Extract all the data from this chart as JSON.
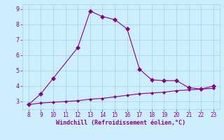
{
  "x_upper": [
    8,
    9,
    10,
    12,
    13,
    14,
    15,
    16,
    17,
    18,
    19,
    20,
    21,
    22,
    23
  ],
  "y_upper": [
    2.8,
    3.5,
    4.5,
    6.5,
    8.85,
    8.5,
    8.3,
    7.7,
    5.1,
    4.4,
    4.35,
    4.35,
    3.9,
    3.8,
    4.0
  ],
  "x_lower": [
    8,
    9,
    10,
    11,
    12,
    13,
    14,
    15,
    16,
    17,
    18,
    19,
    20,
    21,
    22,
    23
  ],
  "y_lower": [
    2.8,
    2.9,
    2.95,
    3.0,
    3.05,
    3.15,
    3.2,
    3.3,
    3.4,
    3.5,
    3.55,
    3.6,
    3.7,
    3.75,
    3.8,
    3.85
  ],
  "line_color": "#880088",
  "bg_color": "#cceeff",
  "grid_color": "#aadddd",
  "xlabel": "Windchill (Refroidissement éolien,°C)",
  "xlim": [
    7.5,
    23.5
  ],
  "ylim": [
    2.5,
    9.3
  ],
  "xticks": [
    8,
    9,
    10,
    11,
    12,
    13,
    14,
    15,
    16,
    17,
    18,
    19,
    20,
    21,
    22,
    23
  ],
  "yticks": [
    3,
    4,
    5,
    6,
    7,
    8,
    9
  ],
  "xlabel_color": "#880088",
  "tick_color": "#880088",
  "marker_style": "D",
  "marker_size": 3,
  "marker_size_lower": 2
}
